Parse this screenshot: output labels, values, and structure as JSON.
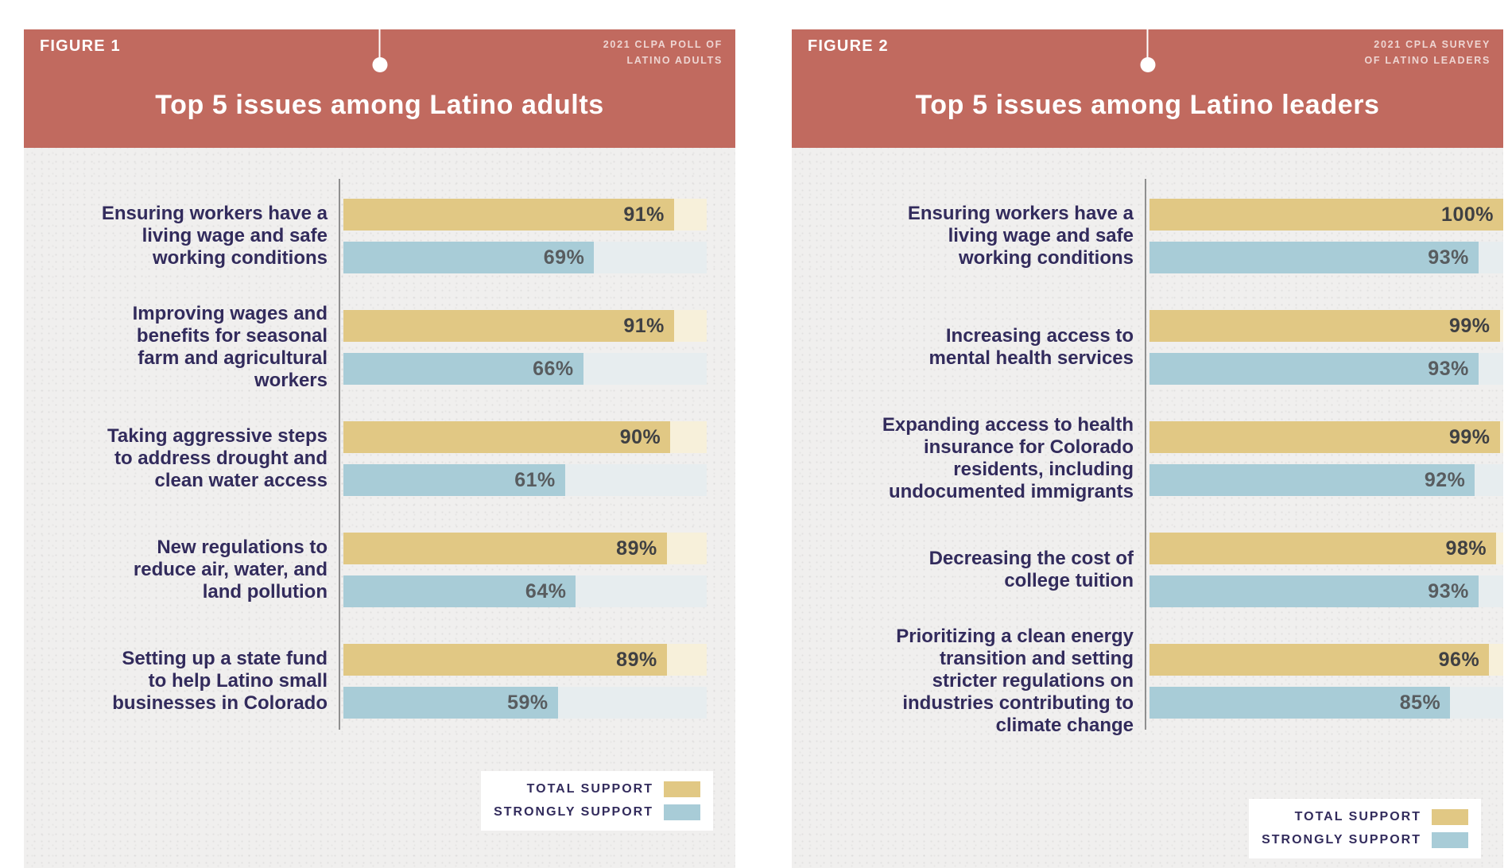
{
  "colors": {
    "header_red": "#c16a5f",
    "panel_background": "#f0efee",
    "total_support_gold": "#e1c884",
    "total_support_track": "#f7f0da",
    "strongly_support_blue": "#a8ccd7",
    "strongly_support_track": "#e7edef",
    "category_text_navy": "#322b5c",
    "axis_gray": "#8f8f8f"
  },
  "legend": {
    "total_label": "TOTAL SUPPORT",
    "strongly_label": "STRONGLY SUPPORT"
  },
  "figures": [
    {
      "tag": "FIGURE 1",
      "source": [
        "2021 CLPA POLL OF",
        "LATINO ADULTS"
      ],
      "title": "Top 5 issues among Latino adults",
      "rows": [
        {
          "label": "Ensuring workers have a\nliving wage and safe\nworking conditions",
          "total": 91,
          "strong": 69
        },
        {
          "label": "Improving wages and\nbenefits for seasonal\nfarm and agricultural\nworkers",
          "total": 91,
          "strong": 66
        },
        {
          "label": "Taking aggressive steps\nto address drought and\nclean water access",
          "total": 90,
          "strong": 61
        },
        {
          "label": "New regulations to\nreduce air, water, and\nland pollution",
          "total": 89,
          "strong": 64
        },
        {
          "label": "Setting up a state fund\nto help Latino small\nbusinesses in Colorado",
          "total": 89,
          "strong": 59
        }
      ]
    },
    {
      "tag": "FIGURE 2",
      "source": [
        "2021 CPLA SURVEY",
        "OF LATINO LEADERS"
      ],
      "title": "Top 5 issues among Latino leaders",
      "rows": [
        {
          "label": "Ensuring workers have a\nliving wage and safe\nworking conditions",
          "total": 100,
          "strong": 93
        },
        {
          "label": "Increasing access to\nmental health services",
          "total": 99,
          "strong": 93
        },
        {
          "label": "Expanding access to health\ninsurance for Colorado\nresidents, including\nundocumented immigrants",
          "total": 99,
          "strong": 92
        },
        {
          "label": "Decreasing the cost of\ncollege tuition",
          "total": 98,
          "strong": 93
        },
        {
          "label": "Prioritizing a clean energy\ntransition and setting\nstricter regulations on\nindustries contributing to\nclimate change",
          "total": 96,
          "strong": 85
        }
      ]
    }
  ],
  "chart_data": [
    {
      "type": "bar",
      "orientation": "horizontal",
      "title": "Top 5 issues among Latino adults",
      "source": "2021 CLPA POLL OF LATINO ADULTS",
      "categories": [
        "Ensuring workers have a living wage and safe working conditions",
        "Improving wages and benefits for seasonal farm and agricultural workers",
        "Taking aggressive steps to address drought and clean water access",
        "New regulations to reduce air, water, and land pollution",
        "Setting up a state fund to help Latino small businesses in Colorado"
      ],
      "series": [
        {
          "name": "TOTAL SUPPORT",
          "values": [
            91,
            91,
            90,
            89,
            89
          ]
        },
        {
          "name": "STRONGLY SUPPORT",
          "values": [
            69,
            66,
            61,
            64,
            59
          ]
        }
      ],
      "unit": "%",
      "xlim": [
        0,
        100
      ],
      "grid": false,
      "legend_position": "bottom-right"
    },
    {
      "type": "bar",
      "orientation": "horizontal",
      "title": "Top 5 issues among Latino leaders",
      "source": "2021 CPLA SURVEY OF LATINO LEADERS",
      "categories": [
        "Ensuring workers have a living wage and safe working conditions",
        "Increasing access to mental health services",
        "Expanding access to health insurance for Colorado residents, including undocumented immigrants",
        "Decreasing the cost of college tuition",
        "Prioritizing a clean energy transition and setting stricter regulations on industries contributing to climate change"
      ],
      "series": [
        {
          "name": "TOTAL SUPPORT",
          "values": [
            100,
            99,
            99,
            98,
            96
          ]
        },
        {
          "name": "STRONGLY SUPPORT",
          "values": [
            93,
            93,
            92,
            93,
            85
          ]
        }
      ],
      "unit": "%",
      "xlim": [
        0,
        100
      ],
      "grid": false,
      "legend_position": "bottom-right"
    }
  ]
}
